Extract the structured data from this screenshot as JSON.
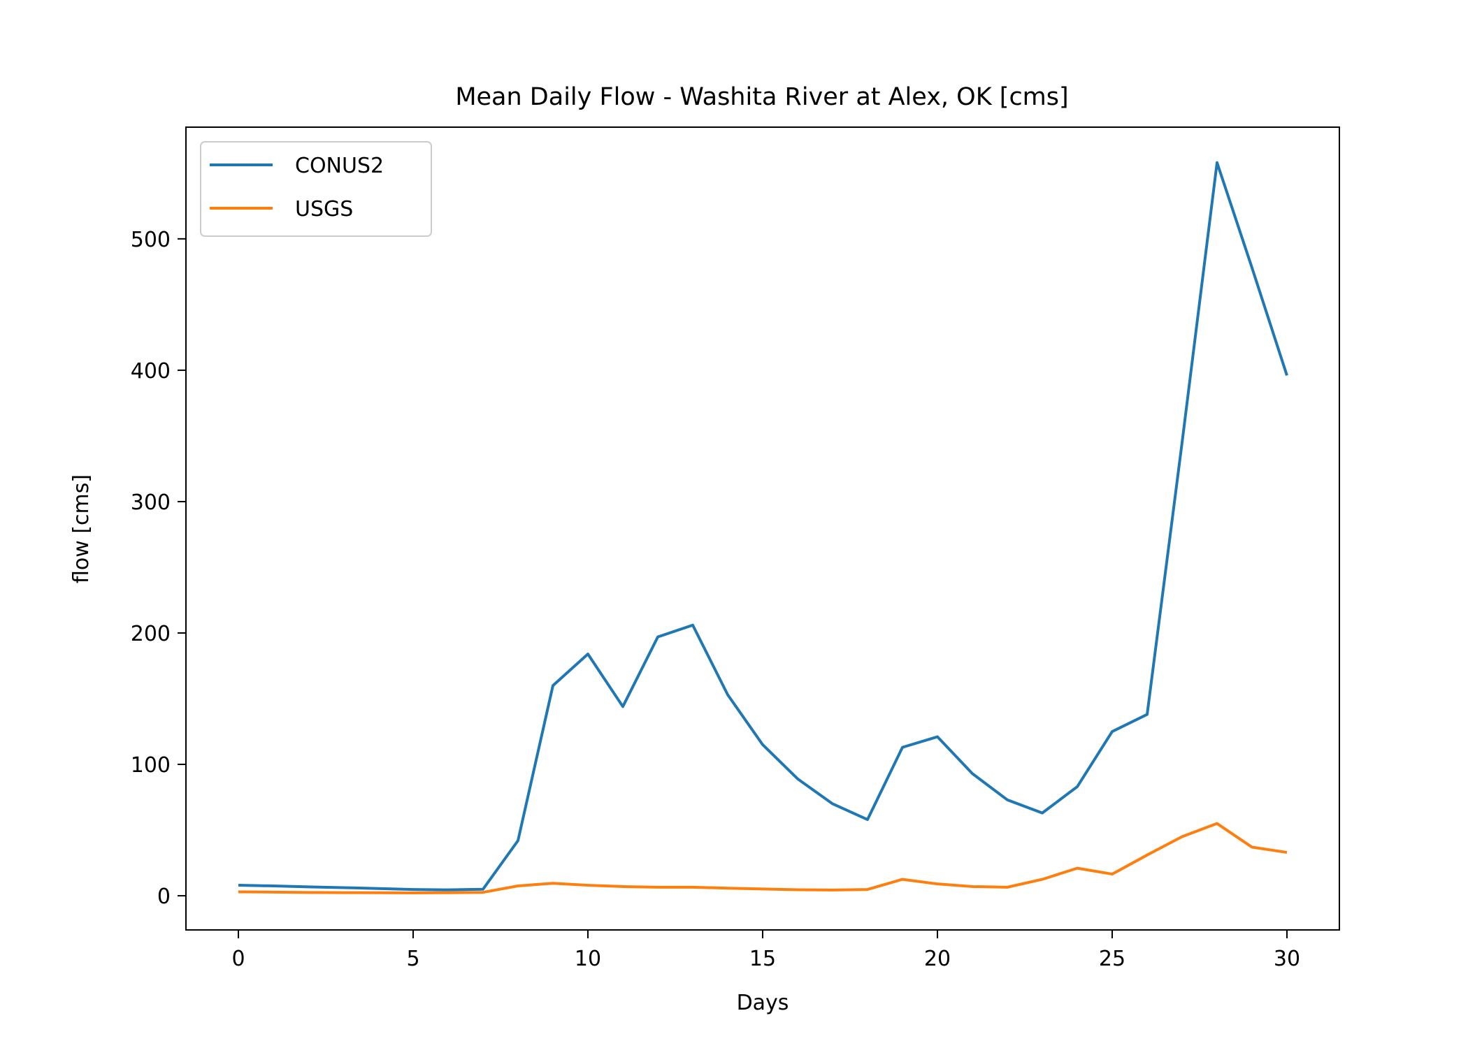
{
  "chart_data": {
    "type": "line",
    "title": "Mean Daily Flow - Washita River at Alex, OK [cms]",
    "xlabel": "Days",
    "ylabel": "flow [cms]",
    "xlim": [
      -1.5,
      31.5
    ],
    "ylim": [
      -26,
      585
    ],
    "xticks": [
      0,
      5,
      10,
      15,
      20,
      25,
      30
    ],
    "yticks": [
      0,
      100,
      200,
      300,
      400,
      500
    ],
    "grid": false,
    "legend_position": "upper-left",
    "series": [
      {
        "name": "CONUS2",
        "color": "#1f77b4",
        "x": [
          0,
          1,
          2,
          3,
          4,
          5,
          6,
          7,
          8,
          9,
          10,
          11,
          12,
          13,
          14,
          15,
          16,
          17,
          18,
          19,
          20,
          21,
          22,
          23,
          24,
          25,
          26,
          27,
          28,
          29,
          30
        ],
        "y": [
          8,
          7.5,
          6.8,
          6.2,
          5.5,
          4.8,
          4.5,
          5,
          42,
          160,
          184,
          144,
          197,
          206,
          153,
          115,
          89,
          70,
          58,
          113,
          121,
          93,
          73,
          63,
          83,
          125,
          138,
          345,
          558,
          478,
          396
        ]
      },
      {
        "name": "USGS",
        "color": "#ff7f0e",
        "x": [
          0,
          1,
          2,
          3,
          4,
          5,
          6,
          7,
          8,
          9,
          10,
          11,
          12,
          13,
          14,
          15,
          16,
          17,
          18,
          19,
          20,
          21,
          22,
          23,
          24,
          25,
          26,
          27,
          28,
          29,
          30
        ],
        "y": [
          3,
          2.8,
          2.5,
          2.4,
          2.3,
          2.2,
          2.3,
          2.6,
          7.5,
          9.5,
          8,
          7,
          6.5,
          6.5,
          5.8,
          5.2,
          4.6,
          4.4,
          4.8,
          12.5,
          9,
          7,
          6.5,
          12.5,
          21,
          16.5,
          31,
          45,
          55,
          37,
          33
        ]
      }
    ]
  }
}
